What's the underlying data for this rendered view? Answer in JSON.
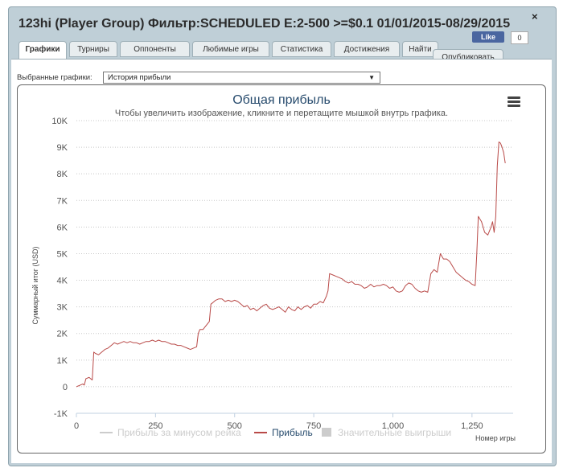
{
  "window": {
    "title": "123hi (Player Group) Фильтр:SCHEDULED E:2-500 >=$0.1 01/01/2015-08/29/2015",
    "close_glyph": "×",
    "like_label": "Like",
    "like_count": "0"
  },
  "tabs": [
    {
      "label": "Графики",
      "active": true
    },
    {
      "label": "Турниры"
    },
    {
      "label": "Оппоненты"
    },
    {
      "label": "Любимые игры"
    },
    {
      "label": "Статистика"
    },
    {
      "label": "Достижения"
    },
    {
      "label": "Найти"
    }
  ],
  "publish_label": "Опубликовать",
  "selector": {
    "label": "Выбранные графики:",
    "value": "История прибыли",
    "arrow": "▼"
  },
  "chart_data": {
    "type": "line",
    "title": "Общая прибыль",
    "subtitle": "Чтобы увеличить изображение, кликните и перетащите мышкой внутрь графика.",
    "ylabel": "Суммарный итог (USD)",
    "xlabel": "Номер игры",
    "xlim": [
      0,
      1380
    ],
    "ylim": [
      -1000,
      10000
    ],
    "x_ticks": [
      0,
      250,
      500,
      750,
      1000,
      1250
    ],
    "x_tick_labels": [
      "0",
      "250",
      "500",
      "750",
      "1,000",
      "1,250"
    ],
    "y_ticks": [
      -1000,
      0,
      1000,
      2000,
      3000,
      4000,
      5000,
      6000,
      7000,
      8000,
      9000,
      10000
    ],
    "y_tick_labels": [
      "-1K",
      "0",
      "1K",
      "2K",
      "3K",
      "4K",
      "5K",
      "6K",
      "7K",
      "8K",
      "9K",
      "10K"
    ],
    "grid": true,
    "legend_position": "bottom",
    "series": [
      {
        "name": "Прибыль за минусом рейка",
        "color": "#cccccc",
        "visible": false,
        "values": []
      },
      {
        "name": "Прибыль",
        "color": "#b94a48",
        "visible": true,
        "points": [
          [
            0,
            0
          ],
          [
            10,
            50
          ],
          [
            20,
            100
          ],
          [
            25,
            60
          ],
          [
            30,
            300
          ],
          [
            40,
            350
          ],
          [
            50,
            250
          ],
          [
            55,
            1300
          ],
          [
            60,
            1250
          ],
          [
            70,
            1200
          ],
          [
            80,
            1300
          ],
          [
            90,
            1400
          ],
          [
            100,
            1450
          ],
          [
            110,
            1550
          ],
          [
            120,
            1650
          ],
          [
            130,
            1600
          ],
          [
            140,
            1650
          ],
          [
            150,
            1700
          ],
          [
            160,
            1650
          ],
          [
            170,
            1700
          ],
          [
            180,
            1650
          ],
          [
            190,
            1650
          ],
          [
            200,
            1600
          ],
          [
            210,
            1650
          ],
          [
            220,
            1700
          ],
          [
            230,
            1700
          ],
          [
            240,
            1750
          ],
          [
            250,
            1700
          ],
          [
            260,
            1750
          ],
          [
            270,
            1700
          ],
          [
            280,
            1700
          ],
          [
            290,
            1650
          ],
          [
            300,
            1600
          ],
          [
            310,
            1600
          ],
          [
            320,
            1550
          ],
          [
            330,
            1550
          ],
          [
            340,
            1500
          ],
          [
            350,
            1450
          ],
          [
            360,
            1400
          ],
          [
            370,
            1450
          ],
          [
            380,
            1500
          ],
          [
            385,
            2000
          ],
          [
            390,
            2150
          ],
          [
            400,
            2150
          ],
          [
            410,
            2300
          ],
          [
            420,
            2450
          ],
          [
            425,
            3100
          ],
          [
            430,
            3150
          ],
          [
            440,
            3250
          ],
          [
            450,
            3300
          ],
          [
            460,
            3300
          ],
          [
            470,
            3200
          ],
          [
            480,
            3250
          ],
          [
            490,
            3200
          ],
          [
            500,
            3250
          ],
          [
            510,
            3200
          ],
          [
            520,
            3100
          ],
          [
            530,
            3000
          ],
          [
            540,
            3050
          ],
          [
            550,
            2900
          ],
          [
            560,
            2950
          ],
          [
            570,
            2850
          ],
          [
            580,
            2950
          ],
          [
            590,
            3050
          ],
          [
            600,
            3100
          ],
          [
            610,
            2950
          ],
          [
            620,
            2900
          ],
          [
            630,
            2950
          ],
          [
            640,
            3000
          ],
          [
            650,
            2900
          ],
          [
            660,
            2800
          ],
          [
            670,
            3000
          ],
          [
            680,
            2900
          ],
          [
            690,
            2850
          ],
          [
            700,
            3000
          ],
          [
            710,
            2900
          ],
          [
            720,
            3000
          ],
          [
            730,
            3050
          ],
          [
            740,
            2950
          ],
          [
            750,
            3100
          ],
          [
            760,
            3100
          ],
          [
            770,
            3200
          ],
          [
            780,
            3150
          ],
          [
            790,
            3400
          ],
          [
            795,
            3600
          ],
          [
            800,
            4250
          ],
          [
            810,
            4200
          ],
          [
            820,
            4150
          ],
          [
            830,
            4100
          ],
          [
            840,
            4050
          ],
          [
            850,
            3950
          ],
          [
            860,
            3900
          ],
          [
            870,
            3950
          ],
          [
            880,
            3850
          ],
          [
            890,
            3850
          ],
          [
            900,
            3800
          ],
          [
            910,
            3700
          ],
          [
            920,
            3750
          ],
          [
            930,
            3850
          ],
          [
            940,
            3750
          ],
          [
            950,
            3800
          ],
          [
            960,
            3800
          ],
          [
            970,
            3850
          ],
          [
            980,
            3800
          ],
          [
            990,
            3700
          ],
          [
            1000,
            3750
          ],
          [
            1010,
            3600
          ],
          [
            1020,
            3550
          ],
          [
            1030,
            3600
          ],
          [
            1040,
            3800
          ],
          [
            1050,
            3900
          ],
          [
            1060,
            3850
          ],
          [
            1070,
            3700
          ],
          [
            1080,
            3600
          ],
          [
            1090,
            3550
          ],
          [
            1100,
            3600
          ],
          [
            1110,
            3550
          ],
          [
            1120,
            4250
          ],
          [
            1130,
            4400
          ],
          [
            1140,
            4300
          ],
          [
            1150,
            5000
          ],
          [
            1160,
            4800
          ],
          [
            1170,
            4800
          ],
          [
            1180,
            4700
          ],
          [
            1190,
            4500
          ],
          [
            1200,
            4300
          ],
          [
            1210,
            4200
          ],
          [
            1220,
            4100
          ],
          [
            1230,
            4000
          ],
          [
            1240,
            3950
          ],
          [
            1250,
            3850
          ],
          [
            1260,
            3800
          ],
          [
            1265,
            5000
          ],
          [
            1270,
            6400
          ],
          [
            1280,
            6200
          ],
          [
            1290,
            5800
          ],
          [
            1300,
            5700
          ],
          [
            1310,
            6000
          ],
          [
            1315,
            6200
          ],
          [
            1320,
            5800
          ],
          [
            1325,
            6400
          ],
          [
            1330,
            8300
          ],
          [
            1335,
            9200
          ],
          [
            1340,
            9150
          ],
          [
            1345,
            9000
          ],
          [
            1350,
            8800
          ],
          [
            1355,
            8400
          ]
        ]
      },
      {
        "name": "Значительные выигрыши",
        "color": "#cccccc",
        "visible": false,
        "values": []
      }
    ]
  }
}
